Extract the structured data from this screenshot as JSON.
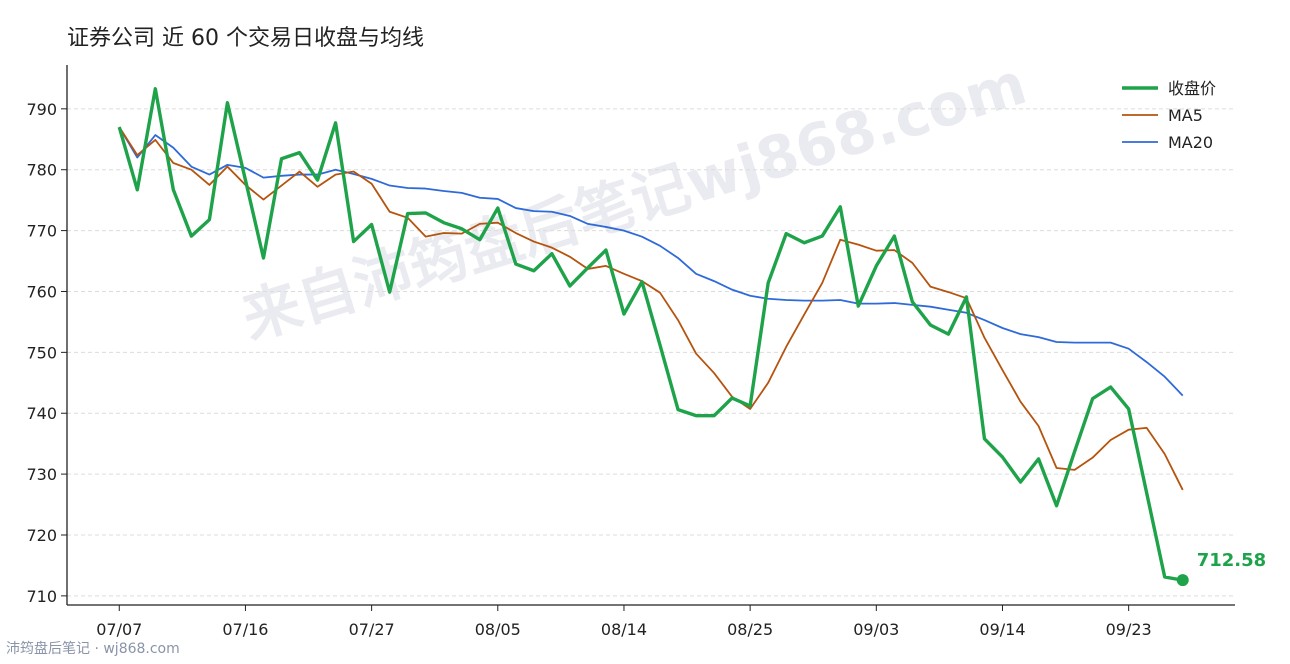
{
  "chart_data": {
    "type": "line",
    "title": "证券公司 近 60 个交易日收盘与均线",
    "watermark": "来自沛筠盘后笔记wj868.com",
    "source": "沛筠盘后笔记 · wj868.com",
    "categories": [
      "07/07",
      null,
      null,
      null,
      null,
      null,
      null,
      "07/16",
      null,
      null,
      null,
      null,
      null,
      null,
      "07/27",
      null,
      null,
      null,
      null,
      null,
      null,
      "08/05",
      null,
      null,
      null,
      null,
      null,
      null,
      "08/14",
      null,
      null,
      null,
      null,
      null,
      null,
      "08/25",
      null,
      null,
      null,
      null,
      null,
      null,
      "09/03",
      null,
      null,
      null,
      null,
      null,
      null,
      "09/14",
      null,
      null,
      null,
      null,
      null,
      null,
      "09/23",
      null,
      null,
      null
    ],
    "series": [
      {
        "name": "收盘价",
        "color": "#1fa34a",
        "values": [
          787.0,
          776.7,
          793.3,
          776.7,
          769.1,
          771.8,
          791.0,
          778.3,
          765.5,
          781.8,
          782.8,
          778.3,
          787.7,
          768.2,
          771.0,
          759.9,
          772.8,
          772.9,
          771.3,
          770.3,
          768.5,
          773.7,
          764.5,
          763.4,
          766.2,
          760.9,
          763.9,
          766.8,
          756.3,
          761.6,
          751.2,
          740.6,
          739.6,
          739.6,
          742.5,
          741.2,
          761.4,
          769.5,
          768.0,
          769.1,
          773.9,
          757.6,
          764.2,
          769.1,
          758.3,
          754.5,
          753.0,
          759.1,
          735.8,
          732.8,
          728.7,
          732.5,
          724.8,
          733.7,
          742.4,
          744.3,
          740.7,
          726.9,
          713.1,
          712.58
        ]
      },
      {
        "name": "MA5",
        "color": "#b5540f",
        "values": [
          787.0,
          782.4,
          784.9,
          781.1,
          780.0,
          777.5,
          780.5,
          777.5,
          775.1,
          777.4,
          779.7,
          777.2,
          779.2,
          779.7,
          777.7,
          773.1,
          772.1,
          769.0,
          769.6,
          769.5,
          771.1,
          771.3,
          769.6,
          768.2,
          767.2,
          765.7,
          763.7,
          764.2,
          762.9,
          761.7,
          759.8,
          755.3,
          749.8,
          746.6,
          742.7,
          740.7,
          745.0,
          750.9,
          756.2,
          761.4,
          768.5,
          767.7,
          766.7,
          766.8,
          764.7,
          760.8,
          759.9,
          758.9,
          752.4,
          747.1,
          741.9,
          737.9,
          731.0,
          730.7,
          732.7,
          735.6,
          737.3,
          737.6,
          733.3,
          727.4
        ]
      },
      {
        "name": "MA20",
        "color": "#2f6ad9",
        "values": [
          787.0,
          782.0,
          785.7,
          783.6,
          780.5,
          779.2,
          780.8,
          780.3,
          778.7,
          779.0,
          779.2,
          779.2,
          780.0,
          779.3,
          778.5,
          777.4,
          777.0,
          776.9,
          776.5,
          776.2,
          775.4,
          775.2,
          773.7,
          773.2,
          773.1,
          772.4,
          771.1,
          770.6,
          770.0,
          769.0,
          767.5,
          765.5,
          762.9,
          761.7,
          760.3,
          759.3,
          758.8,
          758.6,
          758.5,
          758.5,
          758.6,
          758.0,
          758.0,
          758.1,
          757.8,
          757.5,
          757.0,
          756.5,
          755.3,
          754.0,
          753.0,
          752.5,
          751.7,
          751.6,
          751.6,
          751.6,
          750.6,
          748.4,
          746.0,
          742.9
        ]
      }
    ],
    "ylim": [
      708.5,
      797.2
    ],
    "yticks": [
      710,
      720,
      730,
      740,
      750,
      760,
      770,
      780,
      790
    ],
    "grid": true,
    "legend": "upper right"
  }
}
